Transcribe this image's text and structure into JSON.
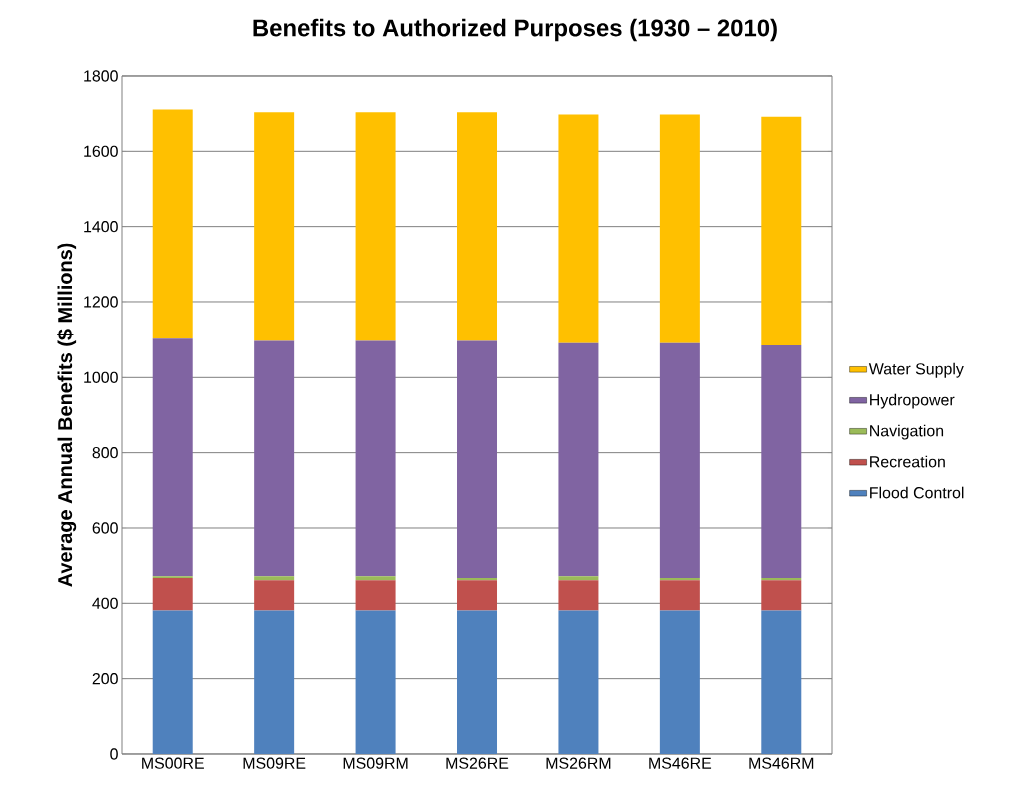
{
  "chart_data": {
    "type": "bar",
    "stacked": true,
    "title": "Benefits to Authorized Purposes (1930 – 2010)",
    "ylabel": "Average Annual Benefits ($ Millions)",
    "categories": [
      "MS00RE",
      "MS09RE",
      "MS09RM",
      "MS26RE",
      "MS26RM",
      "MS46RE",
      "MS46RM"
    ],
    "series": [
      {
        "name": "Flood Control",
        "color": "#4f81bd",
        "values": [
          381,
          381,
          381,
          381,
          381,
          381,
          381
        ]
      },
      {
        "name": "Recreation",
        "color": "#c0504d",
        "values": [
          86,
          80,
          80,
          80,
          80,
          80,
          80
        ]
      },
      {
        "name": "Navigation",
        "color": "#9bbb59",
        "values": [
          5,
          11,
          11,
          6,
          11,
          6,
          6
        ]
      },
      {
        "name": "Hydropower",
        "color": "#8064a2",
        "values": [
          632,
          626,
          626,
          631,
          620,
          625,
          619
        ]
      },
      {
        "name": "Water Supply",
        "color": "#ffc000",
        "values": [
          607,
          606,
          606,
          606,
          606,
          606,
          606
        ]
      }
    ],
    "ylim": [
      0,
      1800
    ],
    "yticks": [
      0,
      200,
      400,
      600,
      800,
      1000,
      1200,
      1400,
      1600,
      1800
    ],
    "grid": "y",
    "legend": "right"
  }
}
